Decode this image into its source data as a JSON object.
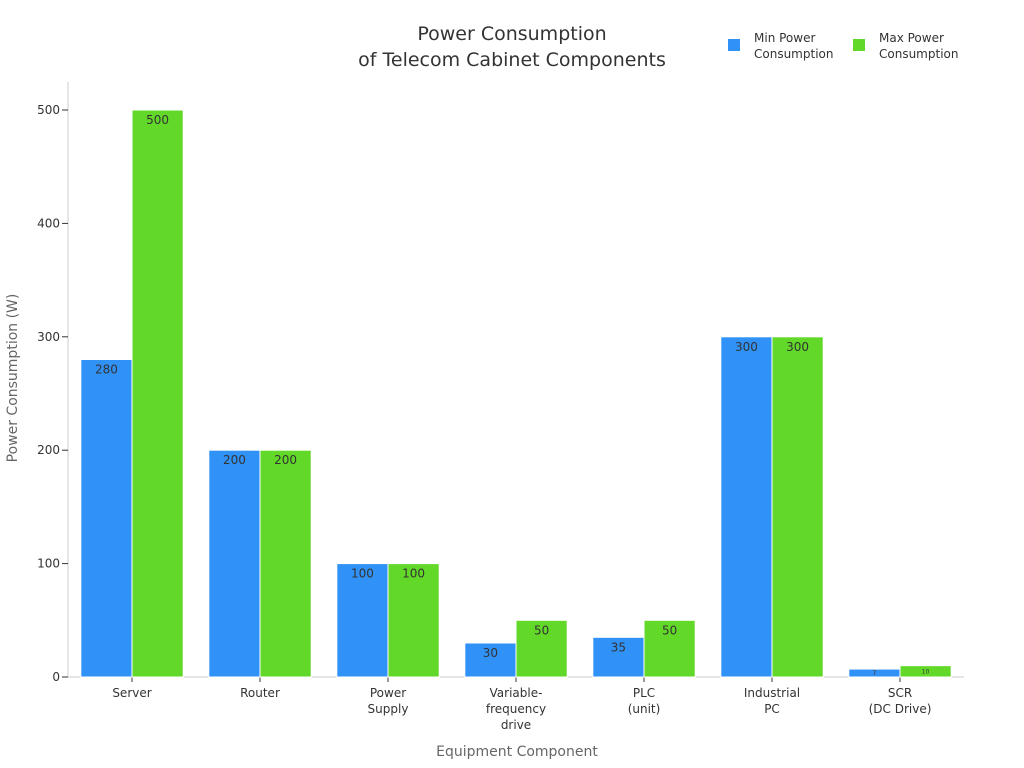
{
  "chart_data": {
    "type": "bar",
    "title_lines": [
      "Power Consumption",
      "of Telecom Cabinet Components"
    ],
    "xlabel": "Equipment Component",
    "ylabel": "Power Consumption (W)",
    "ylim": [
      0,
      525
    ],
    "yticks": [
      0,
      100,
      200,
      300,
      400,
      500
    ],
    "categories": [
      [
        "Server"
      ],
      [
        "Router"
      ],
      [
        "Power",
        "Supply"
      ],
      [
        "Variable-",
        "frequency",
        "drive"
      ],
      [
        "PLC",
        "(unit)"
      ],
      [
        "Industrial",
        "PC"
      ],
      [
        "SCR",
        "(DC Drive)"
      ]
    ],
    "series": [
      {
        "name": "Min Power Consumption",
        "legend_lines": [
          "Min Power",
          "Consumption"
        ],
        "color": "#3091f6",
        "values": [
          280,
          200,
          100,
          30,
          35,
          300,
          7
        ],
        "labels": [
          "280",
          "200",
          "100",
          "30",
          "35",
          "300",
          "7"
        ]
      },
      {
        "name": "Max Power Consumption",
        "legend_lines": [
          "Max Power",
          "Consumption"
        ],
        "color": "#62d929",
        "values": [
          500,
          200,
          100,
          50,
          50,
          300,
          10
        ],
        "labels": [
          "500",
          "200",
          "100",
          "50",
          "50",
          "300",
          "10"
        ]
      }
    ],
    "legend_position": "top-right",
    "grid": false
  }
}
